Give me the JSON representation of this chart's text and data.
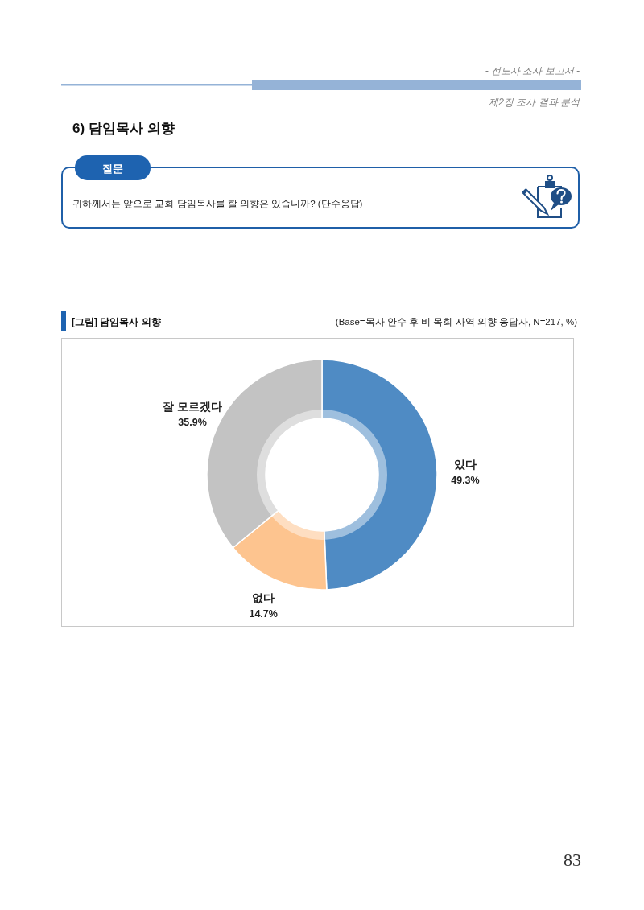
{
  "chart_data": {
    "type": "donut",
    "title": "[그림] 담임목사 의향",
    "subtitle": "(Base=목사 안수 후 비 목회 사역 의향 응답자, N=217, %)",
    "categories": [
      "있다",
      "없다",
      "잘 모르겠다"
    ],
    "values": [
      49.3,
      14.7,
      35.9
    ],
    "colors": [
      "#4f8bc4",
      "#fdc48f",
      "#c3c3c3"
    ],
    "value_labels": [
      "49.3%",
      "14.7%",
      "35.9%"
    ],
    "annotations": [
      "- 전도사 조사 보고서 -",
      "제2장 조사 결과 분석",
      "6) 담임목사 의향",
      "질문",
      "귀하께서는 앞으로 교회 담임목사를 할 의향은 있습니까? (단수응답)",
      "83"
    ]
  }
}
